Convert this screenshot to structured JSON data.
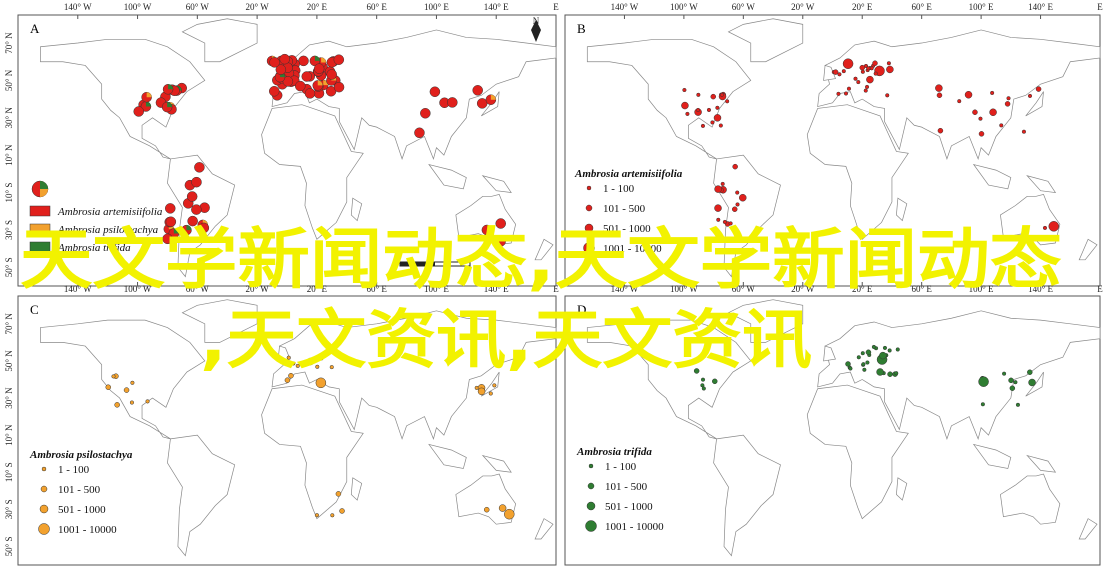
{
  "overlay": {
    "line1": "天文学新闻动态,天文学新闻动态",
    "line2": ",天文资讯,天文资讯"
  },
  "axes": {
    "top": [
      "140° W",
      "100° W",
      "60° W",
      "20° W",
      "20° E",
      "60° E",
      "100° E",
      "140° E",
      "E"
    ],
    "left": [
      "70° N",
      "50° N",
      "30° N",
      "10° N",
      "10° S",
      "30° S",
      "50° S"
    ]
  },
  "north": "N",
  "panels": [
    {
      "letter": "A",
      "legend": {
        "entries": [
          "Ambrosia artemisiifolia",
          "Ambrosia psilostachya",
          "Ambrosia trifida"
        ]
      }
    },
    {
      "letter": "B",
      "legend": {
        "title": "Ambrosia artemisiifolia",
        "entries": [
          "1 - 100",
          "101 - 500",
          "501 - 1000",
          "1001 - 10000"
        ]
      }
    },
    {
      "letter": "C",
      "legend": {
        "title": "Ambrosia psilostachya",
        "entries": [
          "1 - 100",
          "101 - 500",
          "501 - 1000",
          "1001 - 10000"
        ]
      }
    },
    {
      "letter": "D",
      "legend": {
        "title": "Ambrosia trifida",
        "entries": [
          "1 - 100",
          "101 - 500",
          "501 - 1000",
          "1001 - 10000"
        ]
      }
    }
  ]
}
